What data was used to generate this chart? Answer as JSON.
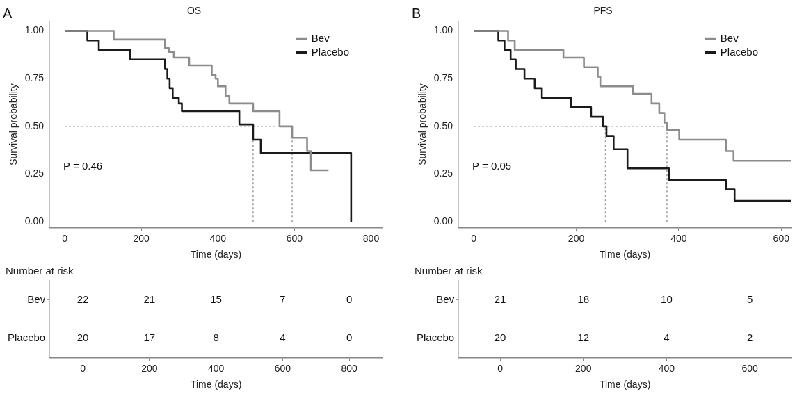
{
  "chart_data": [
    {
      "type": "step",
      "title": "OS",
      "xlabel": "Time (days)",
      "ylabel": "Survival probability",
      "annotations": [
        "A",
        "P = 0.46"
      ],
      "legend": "top right",
      "line_style": "solid",
      "grid": false,
      "xlim": [
        -40,
        830
      ],
      "xticks": [
        0,
        200,
        400,
        600,
        800
      ],
      "ylim": [
        -0.03,
        1.05
      ],
      "yticks": [
        {
          "value": 0,
          "label": "0.00"
        },
        {
          "value": 0.25,
          "label": "0.25"
        },
        {
          "value": 0.5,
          "label": "0.50"
        },
        {
          "value": 0.75,
          "label": "0.75"
        },
        {
          "value": 1,
          "label": "1.00"
        }
      ],
      "series": [
        {
          "name": "Bev",
          "color": "#8c8c8c",
          "x": [
            0,
            128,
            262,
            272,
            285,
            325,
            384,
            394,
            400,
            420,
            430,
            492,
            561,
            594,
            633,
            643,
            689
          ],
          "values": [
            1,
            0.955,
            0.91,
            0.89,
            0.86,
            0.82,
            0.77,
            0.75,
            0.71,
            0.66,
            0.62,
            0.58,
            0.5,
            0.44,
            0.37,
            0.27,
            0.27
          ]
        },
        {
          "name": "Placebo",
          "color": "#1a1a1a",
          "x": [
            0,
            59,
            89,
            171,
            262,
            268,
            274,
            282,
            298,
            306,
            456,
            492,
            512,
            748,
            748
          ],
          "values": [
            1,
            0.95,
            0.9,
            0.85,
            0.8,
            0.75,
            0.7,
            0.65,
            0.62,
            0.58,
            0.51,
            0.43,
            0.36,
            0.36,
            0
          ]
        }
      ],
      "ref_lines": [
        {
          "axis": "y",
          "value": 0.5,
          "color": "#999999",
          "line_style": "dotted"
        },
        {
          "axis": "x",
          "value": 492,
          "color": "#999999",
          "line_style": "dotted"
        },
        {
          "axis": "x",
          "value": 594,
          "color": "#999999",
          "line_style": "dotted"
        }
      ]
    },
    {
      "type": "heatmap",
      "title": "Number at risk",
      "xlabel": "Time (days)",
      "categories": [
        "0",
        "200",
        "400",
        "600",
        "800"
      ],
      "y_categories": [
        "Bev",
        "Placebo"
      ],
      "data_labels": true,
      "cells": [
        [
          22,
          21,
          15,
          7,
          0
        ],
        [
          20,
          17,
          8,
          4,
          0
        ]
      ]
    },
    {
      "type": "step",
      "title": "PFS",
      "xlabel": "Time (days)",
      "ylabel": "Survival probability",
      "annotations": [
        "B",
        "P = 0.05"
      ],
      "legend": "top right",
      "line_style": "solid",
      "grid": false,
      "xlim": [
        -30,
        620
      ],
      "xticks": [
        0,
        200,
        400,
        600
      ],
      "ylim": [
        -0.03,
        1.05
      ],
      "yticks": [
        {
          "value": 0,
          "label": "0.00"
        },
        {
          "value": 0.25,
          "label": "0.25"
        },
        {
          "value": 0.5,
          "label": "0.50"
        },
        {
          "value": 0.75,
          "label": "0.75"
        },
        {
          "value": 1,
          "label": "1.00"
        }
      ],
      "series": [
        {
          "name": "Bev",
          "color": "#8c8c8c",
          "x": [
            0,
            67,
            80,
            175,
            215,
            242,
            247,
            311,
            347,
            362,
            372,
            377,
            401,
            492,
            507,
            620
          ],
          "values": [
            1,
            0.95,
            0.9,
            0.86,
            0.81,
            0.76,
            0.71,
            0.67,
            0.62,
            0.57,
            0.52,
            0.48,
            0.43,
            0.37,
            0.32,
            0.32
          ]
        },
        {
          "name": "Placebo",
          "color": "#1a1a1a",
          "x": [
            0,
            48,
            60,
            72,
            82,
            99,
            119,
            133,
            190,
            229,
            252,
            259,
            273,
            300,
            381,
            492,
            509,
            620
          ],
          "values": [
            1,
            0.95,
            0.9,
            0.85,
            0.8,
            0.75,
            0.7,
            0.65,
            0.6,
            0.55,
            0.5,
            0.45,
            0.38,
            0.28,
            0.22,
            0.17,
            0.11,
            0.11
          ]
        }
      ],
      "ref_lines": [
        {
          "axis": "y",
          "value": 0.5,
          "color": "#999999",
          "line_style": "dotted"
        },
        {
          "axis": "x",
          "value": 257,
          "color": "#999999",
          "line_style": "dotted"
        },
        {
          "axis": "x",
          "value": 377,
          "color": "#999999",
          "line_style": "dotted"
        }
      ]
    },
    {
      "type": "heatmap",
      "title": "Number at risk",
      "xlabel": "Time (days)",
      "categories": [
        "0",
        "200",
        "400",
        "600"
      ],
      "y_categories": [
        "Bev",
        "Placebo"
      ],
      "data_labels": true,
      "cells": [
        [
          21,
          18,
          10,
          5
        ],
        [
          20,
          12,
          4,
          2
        ]
      ]
    }
  ]
}
